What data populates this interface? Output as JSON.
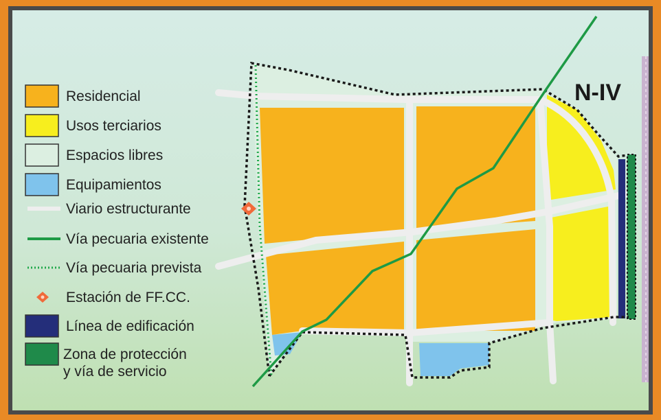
{
  "road_label": "N-IV",
  "legend": [
    {
      "id": "residencial",
      "label": "Residencial",
      "swatch": "box",
      "color": "#f7b21d"
    },
    {
      "id": "usos-terciarios",
      "label": "Usos terciarios",
      "swatch": "box",
      "color": "#f7ee1e"
    },
    {
      "id": "espacios-libres",
      "label": "Espacios libres",
      "swatch": "box",
      "color": "#dcefe1"
    },
    {
      "id": "equipamientos",
      "label": "Equipamientos",
      "swatch": "box",
      "color": "#7fc3ec"
    },
    {
      "id": "viario-estructurante",
      "label": "Viario estructurante",
      "swatch": "line",
      "color": "#eeeeee"
    },
    {
      "id": "via-pecuaria-existente",
      "label": "Vía pecuaria existente",
      "swatch": "line",
      "color": "#1e9a45"
    },
    {
      "id": "via-pecuaria-prevista",
      "label": "Vía pecuaria prevista",
      "swatch": "dotted",
      "color": "#1ea84a"
    },
    {
      "id": "estacion-ffcc",
      "label": "Estación de FF.CC.",
      "swatch": "diamond",
      "color": "#f06a3a"
    },
    {
      "id": "linea-edificacion",
      "label": "Línea de edificación",
      "swatch": "box",
      "color": "#242e7a"
    },
    {
      "id": "zona-proteccion",
      "label": "Zona de protección",
      "label2": "y vía de servicio",
      "swatch": "box",
      "color": "#1f8a4a"
    }
  ],
  "colors": {
    "frame": "#e98a25",
    "border": "#4a4a4a",
    "boundary": "#1a1a1a",
    "highway": "#c9b3cf"
  }
}
